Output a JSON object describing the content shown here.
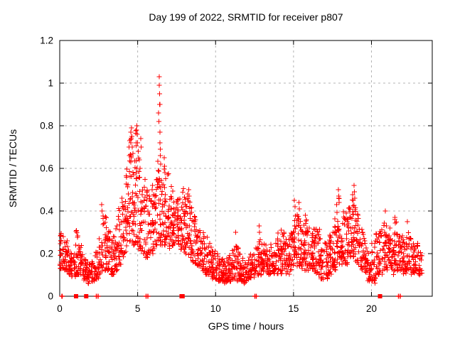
{
  "chart_data": {
    "type": "scatter",
    "title": "Day 199 of 2022, SRMTID for receiver p807",
    "xlabel": "GPS time / hours",
    "ylabel": "SRMTID / TECUs",
    "xlim": [
      0,
      23.9
    ],
    "ylim": [
      0,
      1.2
    ],
    "xticks": [
      {
        "v": 0,
        "label": "0"
      },
      {
        "v": 5,
        "label": "5"
      },
      {
        "v": 10,
        "label": "10"
      },
      {
        "v": 15,
        "label": "15"
      },
      {
        "v": 20,
        "label": "20"
      }
    ],
    "yticks": [
      {
        "v": 0,
        "label": "0"
      },
      {
        "v": 0.2,
        "label": "0.2"
      },
      {
        "v": 0.4,
        "label": "0.4"
      },
      {
        "v": 0.6,
        "label": "0.6"
      },
      {
        "v": 0.8,
        "label": "0.8"
      },
      {
        "v": 1,
        "label": "1"
      },
      {
        "v": 1.2,
        "label": "1.2"
      }
    ],
    "grid": {
      "show": true,
      "style": "dashed",
      "color": "#b4b4b4"
    },
    "marker": {
      "shape": "plus",
      "color": "#ff0000",
      "size": 7
    },
    "legend": "none",
    "seed": 199,
    "bin_width": 0.25,
    "bins": [
      [
        0.0,
        0.13,
        0.3,
        26
      ],
      [
        0.25,
        0.12,
        0.26,
        24
      ],
      [
        0.5,
        0.1,
        0.22,
        22
      ],
      [
        0.75,
        0.09,
        0.2,
        22
      ],
      [
        1.0,
        0.1,
        0.31,
        24
      ],
      [
        1.25,
        0.1,
        0.24,
        22
      ],
      [
        1.5,
        0.07,
        0.18,
        22
      ],
      [
        1.75,
        0.06,
        0.16,
        20
      ],
      [
        2.0,
        0.07,
        0.18,
        20
      ],
      [
        2.25,
        0.08,
        0.22,
        22
      ],
      [
        2.5,
        0.1,
        0.3,
        22
      ],
      [
        2.75,
        0.12,
        0.38,
        24
      ],
      [
        3.0,
        0.12,
        0.32,
        24
      ],
      [
        3.25,
        0.1,
        0.28,
        22
      ],
      [
        3.5,
        0.12,
        0.35,
        24
      ],
      [
        3.75,
        0.15,
        0.42,
        24
      ],
      [
        4.0,
        0.18,
        0.46,
        26
      ],
      [
        4.25,
        0.2,
        0.6,
        26
      ],
      [
        4.5,
        0.24,
        0.76,
        28
      ],
      [
        4.75,
        0.24,
        0.78,
        28
      ],
      [
        5.0,
        0.22,
        0.66,
        26
      ],
      [
        5.25,
        0.2,
        0.58,
        24
      ],
      [
        5.5,
        0.18,
        0.5,
        24
      ],
      [
        5.75,
        0.2,
        0.55,
        24
      ],
      [
        6.0,
        0.22,
        0.58,
        24
      ],
      [
        6.25,
        0.24,
        0.64,
        26
      ],
      [
        6.5,
        0.24,
        0.62,
        24
      ],
      [
        6.75,
        0.24,
        0.58,
        24
      ],
      [
        7.0,
        0.22,
        0.52,
        24
      ],
      [
        7.25,
        0.24,
        0.5,
        24
      ],
      [
        7.5,
        0.24,
        0.55,
        26
      ],
      [
        7.75,
        0.22,
        0.52,
        26
      ],
      [
        8.0,
        0.2,
        0.48,
        26
      ],
      [
        8.25,
        0.18,
        0.45,
        24
      ],
      [
        8.5,
        0.15,
        0.38,
        24
      ],
      [
        8.75,
        0.13,
        0.32,
        22
      ],
      [
        9.0,
        0.12,
        0.3,
        22
      ],
      [
        9.25,
        0.1,
        0.28,
        22
      ],
      [
        9.5,
        0.1,
        0.25,
        22
      ],
      [
        9.75,
        0.08,
        0.22,
        22
      ],
      [
        10.0,
        0.07,
        0.2,
        22
      ],
      [
        10.25,
        0.07,
        0.18,
        22
      ],
      [
        10.5,
        0.06,
        0.18,
        22
      ],
      [
        10.75,
        0.07,
        0.2,
        22
      ],
      [
        11.0,
        0.08,
        0.22,
        22
      ],
      [
        11.25,
        0.07,
        0.25,
        22
      ],
      [
        11.5,
        0.07,
        0.2,
        22
      ],
      [
        11.75,
        0.06,
        0.18,
        22
      ],
      [
        12.0,
        0.08,
        0.2,
        22
      ],
      [
        12.25,
        0.08,
        0.22,
        22
      ],
      [
        12.5,
        0.1,
        0.25,
        22
      ],
      [
        12.75,
        0.1,
        0.3,
        22
      ],
      [
        13.0,
        0.1,
        0.25,
        22
      ],
      [
        13.25,
        0.1,
        0.22,
        22
      ],
      [
        13.5,
        0.1,
        0.25,
        22
      ],
      [
        13.75,
        0.1,
        0.28,
        22
      ],
      [
        14.0,
        0.1,
        0.3,
        22
      ],
      [
        14.25,
        0.12,
        0.32,
        22
      ],
      [
        14.5,
        0.1,
        0.28,
        22
      ],
      [
        14.75,
        0.12,
        0.3,
        22
      ],
      [
        15.0,
        0.14,
        0.4,
        24
      ],
      [
        15.25,
        0.14,
        0.42,
        24
      ],
      [
        15.5,
        0.12,
        0.35,
        24
      ],
      [
        15.75,
        0.12,
        0.38,
        24
      ],
      [
        16.0,
        0.12,
        0.35,
        24
      ],
      [
        16.25,
        0.1,
        0.32,
        24
      ],
      [
        16.5,
        0.1,
        0.33,
        24
      ],
      [
        16.75,
        0.08,
        0.25,
        22
      ],
      [
        17.0,
        0.08,
        0.25,
        22
      ],
      [
        17.25,
        0.1,
        0.3,
        24
      ],
      [
        17.5,
        0.12,
        0.38,
        24
      ],
      [
        17.75,
        0.15,
        0.46,
        26
      ],
      [
        18.0,
        0.15,
        0.44,
        26
      ],
      [
        18.25,
        0.15,
        0.4,
        24
      ],
      [
        18.5,
        0.18,
        0.42,
        24
      ],
      [
        18.75,
        0.18,
        0.48,
        26
      ],
      [
        19.0,
        0.15,
        0.4,
        24
      ],
      [
        19.25,
        0.12,
        0.35,
        24
      ],
      [
        19.5,
        0.1,
        0.3,
        22
      ],
      [
        19.75,
        0.05,
        0.22,
        22
      ],
      [
        20.0,
        0.06,
        0.25,
        22
      ],
      [
        20.25,
        0.1,
        0.3,
        22
      ],
      [
        20.5,
        0.1,
        0.32,
        22
      ],
      [
        20.75,
        0.12,
        0.35,
        24
      ],
      [
        21.0,
        0.12,
        0.32,
        24
      ],
      [
        21.25,
        0.1,
        0.3,
        22
      ],
      [
        21.5,
        0.12,
        0.36,
        24
      ],
      [
        21.75,
        0.12,
        0.3,
        22
      ],
      [
        22.0,
        0.1,
        0.28,
        22
      ],
      [
        22.25,
        0.12,
        0.3,
        22
      ],
      [
        22.5,
        0.1,
        0.28,
        22
      ],
      [
        22.75,
        0.1,
        0.25,
        22
      ],
      [
        23.0,
        0.1,
        0.22,
        18
      ]
    ],
    "spike_points": [
      [
        2.7,
        0.43
      ],
      [
        2.72,
        0.4
      ],
      [
        3.98,
        0.46
      ],
      [
        4.02,
        0.44
      ],
      [
        4.45,
        0.7
      ],
      [
        4.47,
        0.66
      ],
      [
        4.5,
        0.73
      ],
      [
        4.55,
        0.77
      ],
      [
        4.57,
        0.72
      ],
      [
        4.6,
        0.79
      ],
      [
        4.62,
        0.75
      ],
      [
        4.65,
        0.7
      ],
      [
        4.7,
        0.67
      ],
      [
        4.92,
        0.78
      ],
      [
        4.95,
        0.8
      ],
      [
        4.97,
        0.76
      ],
      [
        5.0,
        0.72
      ],
      [
        5.05,
        0.68
      ],
      [
        5.1,
        0.64
      ],
      [
        5.15,
        0.6
      ],
      [
        5.2,
        0.74
      ],
      [
        5.22,
        0.7
      ],
      [
        6.35,
        0.86
      ],
      [
        6.37,
        0.82
      ],
      [
        6.38,
        1.03
      ],
      [
        6.38,
        0.99
      ],
      [
        6.4,
        0.95
      ],
      [
        6.4,
        0.9
      ],
      [
        6.42,
        0.9
      ],
      [
        6.43,
        0.77
      ],
      [
        6.44,
        0.72
      ],
      [
        6.45,
        0.69
      ],
      [
        6.46,
        0.66
      ],
      [
        6.47,
        0.62
      ],
      [
        6.7,
        0.65
      ],
      [
        6.72,
        0.61
      ],
      [
        6.74,
        0.58
      ],
      [
        8.28,
        0.5
      ],
      [
        8.3,
        0.47
      ],
      [
        11.3,
        0.3
      ],
      [
        12.8,
        0.33
      ],
      [
        12.82,
        0.3
      ],
      [
        14.2,
        0.31
      ],
      [
        15.05,
        0.45
      ],
      [
        15.1,
        0.42
      ],
      [
        15.35,
        0.44
      ],
      [
        15.38,
        0.41
      ],
      [
        17.88,
        0.5
      ],
      [
        17.9,
        0.47
      ],
      [
        17.92,
        0.44
      ],
      [
        18.88,
        0.52
      ],
      [
        18.9,
        0.49
      ],
      [
        18.92,
        0.46
      ],
      [
        20.9,
        0.4
      ],
      [
        21.5,
        0.37
      ],
      [
        22.3,
        0.35
      ]
    ],
    "zero_tick_points": [
      0.13,
      0.16,
      2.35,
      2.46,
      5.55,
      5.66,
      12.52,
      12.62,
      21.74,
      21.85
    ],
    "zero_block_points": [
      1.05,
      1.7,
      7.82,
      7.88,
      20.55
    ]
  }
}
